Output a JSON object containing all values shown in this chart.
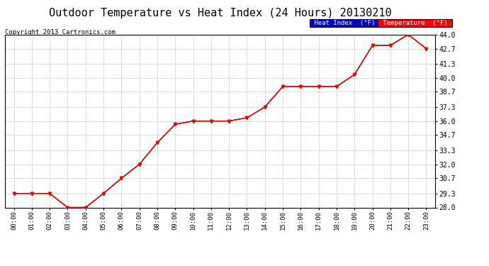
{
  "title": "Outdoor Temperature vs Heat Index (24 Hours) 20130210",
  "copyright": "Copyright 2013 Cartronics.com",
  "hours": [
    "00:00",
    "01:00",
    "02:00",
    "03:00",
    "04:00",
    "05:00",
    "06:00",
    "07:00",
    "08:00",
    "09:00",
    "10:00",
    "11:00",
    "12:00",
    "13:00",
    "14:00",
    "15:00",
    "16:00",
    "17:00",
    "18:00",
    "19:00",
    "20:00",
    "21:00",
    "22:00",
    "23:00"
  ],
  "temperature": [
    29.3,
    29.3,
    29.3,
    28.0,
    28.0,
    29.3,
    30.7,
    32.0,
    34.0,
    35.7,
    36.0,
    36.0,
    36.0,
    36.3,
    37.3,
    39.2,
    39.2,
    39.2,
    39.2,
    40.3,
    43.0,
    43.0,
    44.0,
    42.7
  ],
  "heat_index": [
    29.3,
    29.3,
    29.3,
    28.0,
    28.0,
    29.3,
    30.7,
    32.0,
    34.0,
    35.7,
    36.0,
    36.0,
    36.0,
    36.3,
    37.3,
    39.2,
    39.2,
    39.2,
    39.2,
    40.3,
    43.0,
    43.0,
    44.0,
    42.7
  ],
  "ylim": [
    28.0,
    44.0
  ],
  "yticks": [
    28.0,
    29.3,
    30.7,
    32.0,
    33.3,
    34.7,
    36.0,
    37.3,
    38.7,
    40.0,
    41.3,
    42.7,
    44.0
  ],
  "temp_color": "#FF0000",
  "heat_index_color": "#000000",
  "bg_color": "#ffffff",
  "plot_bg_color": "#ffffff",
  "grid_color": "#bbbbbb",
  "title_fontsize": 11,
  "legend_heat_bg": "#0000cc",
  "legend_temp_bg": "#FF0000",
  "legend_text_color": "#ffffff",
  "legend_heat_text": "Heat Index  (°F)",
  "legend_temp_text": "Temperature  (°F)"
}
